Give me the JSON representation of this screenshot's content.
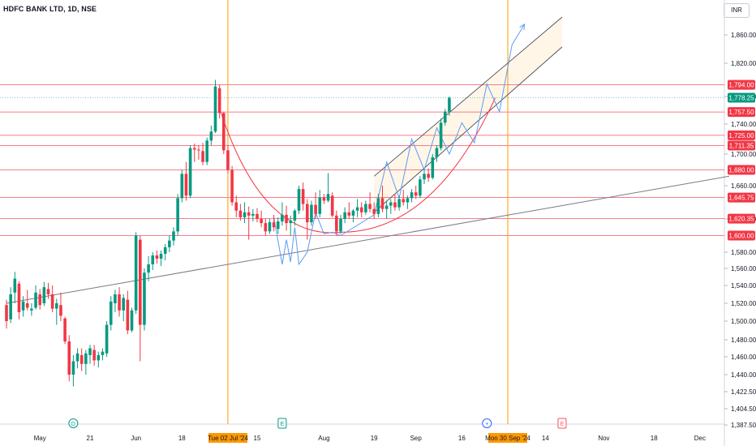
{
  "header": {
    "symbol": "HDFC BANK LTD, 1D, NSE",
    "currency": "INR"
  },
  "chart_data": {
    "type": "candlestick",
    "ylim": [
      1378,
      1890
    ],
    "y_ticks": [
      1860,
      1820,
      1780,
      1740,
      1700,
      1660,
      1620,
      1580,
      1560,
      1540,
      1520,
      1500,
      1480,
      1460,
      1440,
      1422.5,
      1404.5,
      1387.5
    ],
    "y_tick_labels": [
      "1,860.00",
      "1,820.00",
      "1,780.00",
      "1,740.00",
      "1,700.00",
      "1,660.00",
      "1,620.00",
      "1,580.00",
      "1,560.00",
      "1,540.00",
      "1,520.00",
      "1,500.00",
      "1,480.00",
      "1,460.00",
      "1,440.00",
      "1,422.50",
      "1,404.50",
      "1,387.50"
    ],
    "x_ticks": [
      {
        "label": "May",
        "day": 8
      },
      {
        "label": "21",
        "day": 20
      },
      {
        "label": "Jun",
        "day": 31
      },
      {
        "label": "18",
        "day": 42
      },
      {
        "label": "15",
        "day": 60
      },
      {
        "label": "Aug",
        "day": 76
      },
      {
        "label": "19",
        "day": 88
      },
      {
        "label": "Sep",
        "day": 98
      },
      {
        "label": "16",
        "day": 109
      },
      {
        "label": "14",
        "day": 129
      },
      {
        "label": "Nov",
        "day": 143
      },
      {
        "label": "18",
        "day": 155
      },
      {
        "label": "Dec",
        "day": 166
      }
    ],
    "horizontal_levels": [
      {
        "value": 1794.0,
        "label": "1,794.00"
      },
      {
        "value": 1757.5,
        "label": "1,757.50"
      },
      {
        "value": 1725.0,
        "label": "1,725.00"
      },
      {
        "value": 1711.35,
        "label": "1,711.35"
      },
      {
        "value": 1680.0,
        "label": "1,680.00"
      },
      {
        "value": 1645.75,
        "label": "1,645.75"
      },
      {
        "value": 1620.35,
        "label": "1,620.35"
      },
      {
        "value": 1600.0,
        "label": "1,600.00"
      }
    ],
    "last_price": {
      "value": 1778.25,
      "label": "1,778.25"
    },
    "vertical_markers": [
      {
        "day": 53,
        "label": "Tue 02 Jul '24"
      },
      {
        "day": 120,
        "label": "Mon 30 Sep '24"
      }
    ],
    "event_badges": [
      {
        "day": 16,
        "label": "D"
      },
      {
        "day": 66,
        "label": "E"
      },
      {
        "day": 115,
        "label": "+"
      },
      {
        "day": 133,
        "label": "E"
      }
    ],
    "candles": [
      [
        1518,
        1524,
        1492,
        1500
      ],
      [
        1502,
        1538,
        1498,
        1530
      ],
      [
        1532,
        1556,
        1520,
        1548
      ],
      [
        1542,
        1545,
        1502,
        1510
      ],
      [
        1512,
        1528,
        1505,
        1522
      ],
      [
        1520,
        1535,
        1512,
        1515
      ],
      [
        1512,
        1520,
        1506,
        1514
      ],
      [
        1515,
        1540,
        1513,
        1532
      ],
      [
        1530,
        1536,
        1513,
        1518
      ],
      [
        1520,
        1544,
        1517,
        1538
      ],
      [
        1536,
        1543,
        1525,
        1530
      ],
      [
        1530,
        1540,
        1510,
        1514
      ],
      [
        1514,
        1525,
        1496,
        1520
      ],
      [
        1518,
        1532,
        1500,
        1506
      ],
      [
        1503,
        1505,
        1475,
        1478
      ],
      [
        1478,
        1485,
        1433,
        1440
      ],
      [
        1440,
        1462,
        1428,
        1455
      ],
      [
        1455,
        1470,
        1447,
        1464
      ],
      [
        1462,
        1470,
        1444,
        1452
      ],
      [
        1452,
        1468,
        1440,
        1464
      ],
      [
        1462,
        1474,
        1452,
        1470
      ],
      [
        1468,
        1474,
        1450,
        1456
      ],
      [
        1456,
        1466,
        1448,
        1462
      ],
      [
        1462,
        1470,
        1456,
        1466
      ],
      [
        1464,
        1500,
        1460,
        1496
      ],
      [
        1496,
        1528,
        1490,
        1522
      ],
      [
        1520,
        1535,
        1510,
        1530
      ],
      [
        1530,
        1538,
        1505,
        1512
      ],
      [
        1512,
        1530,
        1500,
        1526
      ],
      [
        1524,
        1534,
        1486,
        1490
      ],
      [
        1490,
        1515,
        1488,
        1512
      ],
      [
        1512,
        1604,
        1508,
        1600
      ],
      [
        1595,
        1600,
        1455,
        1496
      ],
      [
        1496,
        1560,
        1490,
        1555
      ],
      [
        1555,
        1575,
        1545,
        1565
      ],
      [
        1565,
        1580,
        1558,
        1576
      ],
      [
        1576,
        1582,
        1566,
        1572
      ],
      [
        1572,
        1582,
        1563,
        1578
      ],
      [
        1578,
        1590,
        1570,
        1586
      ],
      [
        1586,
        1600,
        1580,
        1594
      ],
      [
        1594,
        1610,
        1588,
        1605
      ],
      [
        1605,
        1650,
        1600,
        1645
      ],
      [
        1645,
        1680,
        1640,
        1675
      ],
      [
        1675,
        1690,
        1642,
        1648
      ],
      [
        1648,
        1712,
        1645,
        1708
      ],
      [
        1708,
        1714,
        1690,
        1706
      ],
      [
        1706,
        1712,
        1693,
        1705
      ],
      [
        1704,
        1715,
        1686,
        1690
      ],
      [
        1690,
        1722,
        1686,
        1718
      ],
      [
        1718,
        1738,
        1712,
        1730
      ],
      [
        1730,
        1800,
        1728,
        1792
      ],
      [
        1790,
        1794,
        1748,
        1756
      ],
      [
        1756,
        1758,
        1700,
        1705
      ],
      [
        1705,
        1712,
        1676,
        1680
      ],
      [
        1680,
        1685,
        1636,
        1640
      ],
      [
        1640,
        1648,
        1622,
        1630
      ],
      [
        1630,
        1638,
        1618,
        1622
      ],
      [
        1622,
        1640,
        1615,
        1628
      ],
      [
        1628,
        1635,
        1595,
        1624
      ],
      [
        1624,
        1632,
        1617,
        1626
      ],
      [
        1626,
        1633,
        1616,
        1620
      ],
      [
        1620,
        1630,
        1610,
        1615
      ],
      [
        1615,
        1620,
        1600,
        1605
      ],
      [
        1605,
        1620,
        1602,
        1616
      ],
      [
        1616,
        1625,
        1605,
        1610
      ],
      [
        1608,
        1622,
        1602,
        1617
      ],
      [
        1617,
        1640,
        1612,
        1625
      ],
      [
        1625,
        1636,
        1606,
        1615
      ],
      [
        1615,
        1624,
        1600,
        1618
      ],
      [
        1618,
        1632,
        1612,
        1630
      ],
      [
        1630,
        1660,
        1626,
        1656
      ],
      [
        1656,
        1664,
        1630,
        1638
      ],
      [
        1638,
        1644,
        1595,
        1616
      ],
      [
        1616,
        1642,
        1612,
        1637
      ],
      [
        1637,
        1652,
        1620,
        1626
      ],
      [
        1626,
        1655,
        1622,
        1646
      ],
      [
        1646,
        1650,
        1638,
        1642
      ],
      [
        1642,
        1676,
        1640,
        1650
      ],
      [
        1648,
        1652,
        1622,
        1624
      ],
      [
        1624,
        1630,
        1600,
        1605
      ],
      [
        1605,
        1625,
        1602,
        1620
      ],
      [
        1620,
        1634,
        1615,
        1628
      ],
      [
        1628,
        1640,
        1620,
        1624
      ],
      [
        1624,
        1632,
        1616,
        1630
      ],
      [
        1630,
        1644,
        1622,
        1634
      ],
      [
        1634,
        1640,
        1622,
        1628
      ],
      [
        1628,
        1642,
        1625,
        1638
      ],
      [
        1638,
        1652,
        1628,
        1632
      ],
      [
        1632,
        1640,
        1620,
        1626
      ],
      [
        1626,
        1650,
        1622,
        1645
      ],
      [
        1645,
        1660,
        1628,
        1632
      ],
      [
        1632,
        1642,
        1620,
        1636
      ],
      [
        1636,
        1644,
        1626,
        1640
      ],
      [
        1640,
        1650,
        1630,
        1634
      ],
      [
        1634,
        1648,
        1630,
        1644
      ],
      [
        1644,
        1655,
        1636,
        1640
      ],
      [
        1640,
        1648,
        1632,
        1645
      ],
      [
        1645,
        1656,
        1640,
        1652
      ],
      [
        1652,
        1660,
        1644,
        1648
      ],
      [
        1648,
        1672,
        1645,
        1668
      ],
      [
        1668,
        1680,
        1662,
        1675
      ],
      [
        1675,
        1682,
        1665,
        1670
      ],
      [
        1670,
        1700,
        1668,
        1696
      ],
      [
        1696,
        1712,
        1690,
        1708
      ],
      [
        1708,
        1748,
        1705,
        1742
      ],
      [
        1742,
        1762,
        1738,
        1758
      ],
      [
        1758,
        1780,
        1752,
        1778
      ]
    ],
    "support_line": {
      "from": [
        0,
        1520
      ],
      "to": [
        173,
        1672
      ]
    },
    "channel": {
      "lower": {
        "from": [
          88,
          1628
        ],
        "to": [
          133,
          1843
        ]
      },
      "upper": {
        "from": [
          88,
          1672
        ],
        "to": [
          133,
          1885
        ]
      }
    },
    "zigzag": [
      [
        64,
        1622
      ],
      [
        66,
        1565
      ],
      [
        67,
        1595
      ],
      [
        68,
        1568
      ],
      [
        69,
        1610
      ],
      [
        70,
        1565
      ],
      [
        72,
        1580
      ],
      [
        74,
        1628
      ],
      [
        76,
        1602
      ],
      [
        78,
        1604
      ],
      [
        80,
        1600
      ],
      [
        88,
        1625
      ],
      [
        91,
        1690
      ],
      [
        94,
        1645
      ],
      [
        97,
        1720
      ],
      [
        100,
        1680
      ],
      [
        103,
        1735
      ],
      [
        106,
        1700
      ],
      [
        109,
        1742
      ],
      [
        112,
        1715
      ],
      [
        115,
        1795
      ],
      [
        118,
        1758
      ],
      [
        121,
        1846
      ],
      [
        124,
        1875
      ]
    ],
    "cup_arc": {
      "start": [
        51,
        1763
      ],
      "bottom": [
        80,
        1604
      ],
      "end": [
        117,
        1778
      ]
    }
  }
}
